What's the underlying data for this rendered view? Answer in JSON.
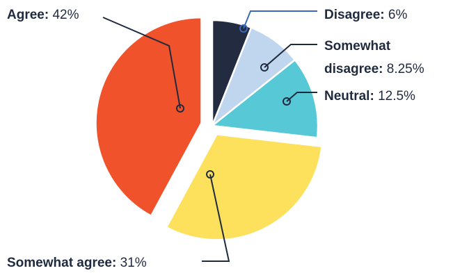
{
  "chart_data": {
    "type": "pie",
    "unit": "%",
    "slices": [
      {
        "key": "disagree",
        "label": "Disagree:",
        "value": 6,
        "value_label": "6%",
        "color": "#222b40"
      },
      {
        "key": "somewhat_disagree",
        "label_line1": "Somewhat",
        "label_line2": "disagree:",
        "value": 8.25,
        "value_label": "8.25%",
        "color": "#c0d5ee"
      },
      {
        "key": "neutral",
        "label": "Neutral:",
        "value": 12.5,
        "value_label": "12.5%",
        "color": "#57c8d6"
      },
      {
        "key": "somewhat_agree",
        "label": "Somewhat agree:",
        "value": 31,
        "value_label": "31%",
        "color": "#fde05c"
      },
      {
        "key": "agree",
        "label": "Agree:",
        "value": 42,
        "value_label": "42%",
        "color": "#f0522c"
      }
    ],
    "exploded": [
      "agree",
      "somewhat_agree"
    ],
    "leader_color": "#1f2a3f",
    "disagree_leader_color": "#3a68b8"
  }
}
